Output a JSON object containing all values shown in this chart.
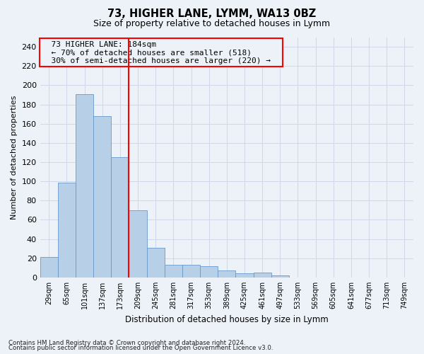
{
  "title1": "73, HIGHER LANE, LYMM, WA13 0BZ",
  "title2": "Size of property relative to detached houses in Lymm",
  "xlabel": "Distribution of detached houses by size in Lymm",
  "ylabel": "Number of detached properties",
  "footer1": "Contains HM Land Registry data © Crown copyright and database right 2024.",
  "footer2": "Contains public sector information licensed under the Open Government Licence v3.0.",
  "annotation_line1": "73 HIGHER LANE: 184sqm",
  "annotation_line2": "← 70% of detached houses are smaller (518)",
  "annotation_line3": "30% of semi-detached houses are larger (220) →",
  "bar_color": "#b8cfe8",
  "bar_edge_color": "#6699cc",
  "categories": [
    "29sqm",
    "65sqm",
    "101sqm",
    "137sqm",
    "173sqm",
    "209sqm",
    "245sqm",
    "281sqm",
    "317sqm",
    "353sqm",
    "389sqm",
    "425sqm",
    "461sqm",
    "497sqm",
    "533sqm",
    "569sqm",
    "605sqm",
    "641sqm",
    "677sqm",
    "713sqm",
    "749sqm"
  ],
  "values": [
    21,
    99,
    191,
    168,
    125,
    70,
    31,
    13,
    13,
    12,
    7,
    4,
    5,
    2,
    0,
    0,
    0,
    0,
    0,
    0,
    0
  ],
  "ylim": [
    0,
    250
  ],
  "yticks": [
    0,
    20,
    40,
    60,
    80,
    100,
    120,
    140,
    160,
    180,
    200,
    220,
    240
  ],
  "vline_index": 4.5,
  "grid_color": "#d0d8e8",
  "bg_color": "#edf2f9"
}
